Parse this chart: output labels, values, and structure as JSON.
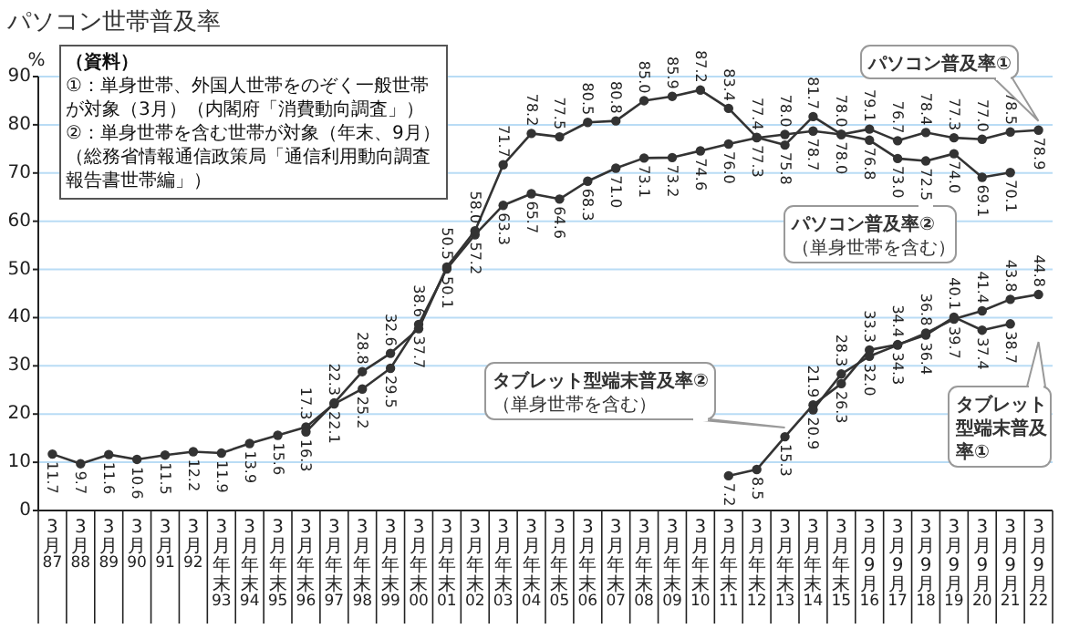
{
  "chart_data": {
    "type": "line",
    "title": "パソコン世帯普及率",
    "ylabel": "%",
    "categories": [
      "3月87",
      "3月88",
      "3月89",
      "3月90",
      "3月91",
      "3月92",
      "3月年末93",
      "3月年末94",
      "3月年末95",
      "3月年末96",
      "3月年末97",
      "3月年末98",
      "3月年末99",
      "3月年末00",
      "3月年末01",
      "3月年末02",
      "3月年末03",
      "3月年末04",
      "3月年末05",
      "3月年末06",
      "3月年末07",
      "3月年末08",
      "3月年末09",
      "3月年末10",
      "3月年末11",
      "3月年末12",
      "3月年末13",
      "3月年末14",
      "3月年末15",
      "3月9月16",
      "3月9月17",
      "3月9月18",
      "3月9月19",
      "3月9月20",
      "3月9月21",
      "3月9月22"
    ],
    "series": [
      {
        "name": "パソコン普及率①",
        "color": "#333333",
        "values": [
          11.7,
          9.7,
          11.6,
          10.6,
          11.5,
          12.2,
          11.9,
          13.9,
          15.6,
          17.3,
          22.1,
          25.2,
          29.5,
          38.6,
          50.1,
          57.2,
          63.3,
          65.7,
          64.6,
          68.3,
          71.0,
          73.1,
          73.2,
          74.6,
          76.0,
          77.3,
          78.0,
          78.7,
          78.0,
          79.1,
          76.7,
          78.4,
          77.3,
          77.0,
          78.5,
          78.9
        ],
        "value_labels": [
          "11.7",
          "9.7",
          "11.6",
          "10.6",
          "11.5",
          "12.2",
          "11.9",
          "13.9",
          "15.6",
          "17.3",
          "22.1",
          "25.2",
          "29.5",
          "38.6",
          "50.1",
          "57.2",
          "63.3",
          "65.7",
          "64.6",
          "68.3",
          "71.0",
          "73.1",
          "73.2",
          "74.6",
          "76.0",
          "77.3",
          "78.0",
          "78.7",
          "78.0",
          "79.1",
          "76.7",
          "78.4",
          "77.3",
          "77.0",
          "78.5",
          "78.9"
        ]
      },
      {
        "name": "パソコン普及率②\n（単身世帯を含む）",
        "color": "#333333",
        "values": [
          null,
          null,
          null,
          null,
          null,
          null,
          null,
          null,
          null,
          16.3,
          22.3,
          28.8,
          32.6,
          37.7,
          50.5,
          58.0,
          71.7,
          78.2,
          77.5,
          80.5,
          80.8,
          85.0,
          85.9,
          87.2,
          83.4,
          77.4,
          75.8,
          81.7,
          78.0,
          76.8,
          73.0,
          72.5,
          74.0,
          69.1,
          70.1,
          null
        ],
        "value_labels": [
          null,
          null,
          null,
          null,
          null,
          null,
          null,
          null,
          null,
          "16.3",
          "22.3",
          "28.8",
          "32.6",
          "37.7",
          "50.5",
          "58.0",
          "71.7",
          "78.2",
          "77.5",
          "80.5",
          "80.8",
          "85.0",
          "85.9",
          "87.2",
          "83.4",
          "77.4",
          "75.8",
          "81.7",
          "78.0",
          "76.8",
          "73.0",
          "72.5",
          "74.0",
          "69.1",
          "70.1",
          null
        ]
      },
      {
        "name": "タブレット型端末普及率②\n（単身世帯を含む）",
        "color": "#333333",
        "values": [
          null,
          null,
          null,
          null,
          null,
          null,
          null,
          null,
          null,
          null,
          null,
          null,
          null,
          null,
          null,
          null,
          null,
          null,
          null,
          null,
          null,
          null,
          null,
          null,
          7.2,
          8.5,
          15.3,
          21.9,
          26.3,
          33.3,
          34.4,
          36.4,
          40.1,
          37.4,
          38.7,
          null
        ],
        "value_labels": [
          null,
          null,
          null,
          null,
          null,
          null,
          null,
          null,
          null,
          null,
          null,
          null,
          null,
          null,
          null,
          null,
          null,
          null,
          null,
          null,
          null,
          null,
          null,
          null,
          "7.2",
          "8.5",
          "15.3",
          "21.9",
          "26.3",
          "33.3",
          "34.4",
          "36.4",
          "40.1",
          "37.4",
          "38.7",
          null
        ]
      },
      {
        "name": "タブレット型端末普及率①",
        "color": "#333333",
        "values": [
          null,
          null,
          null,
          null,
          null,
          null,
          null,
          null,
          null,
          null,
          null,
          null,
          null,
          null,
          null,
          null,
          null,
          null,
          null,
          null,
          null,
          null,
          null,
          null,
          null,
          null,
          null,
          20.9,
          28.3,
          32.0,
          34.3,
          36.8,
          39.7,
          41.4,
          43.8,
          44.8
        ],
        "value_labels": [
          null,
          null,
          null,
          null,
          null,
          null,
          null,
          null,
          null,
          null,
          null,
          null,
          null,
          null,
          null,
          null,
          null,
          null,
          null,
          null,
          null,
          null,
          null,
          null,
          null,
          null,
          null,
          "20.9",
          "28.3",
          "32.0",
          "34.3",
          "36.8",
          "39.7",
          "41.4",
          "43.8",
          "44.8"
        ]
      }
    ],
    "ylim": [
      0,
      90
    ],
    "yticks": [
      0,
      10,
      20,
      30,
      40,
      50,
      60,
      70,
      80,
      90
    ],
    "grid": "y",
    "marker": "circle",
    "annotations": [
      "（資料）\n①：単身世帯、外国人世帯をのぞく一般世帯が対象（3月）（内閣府「消費動向調査」）\n②：単身世帯を含む世帯が対象（年末、9月）（総務省情報通信政策局「通信利用動向調査報告書世帯編」）"
    ]
  }
}
